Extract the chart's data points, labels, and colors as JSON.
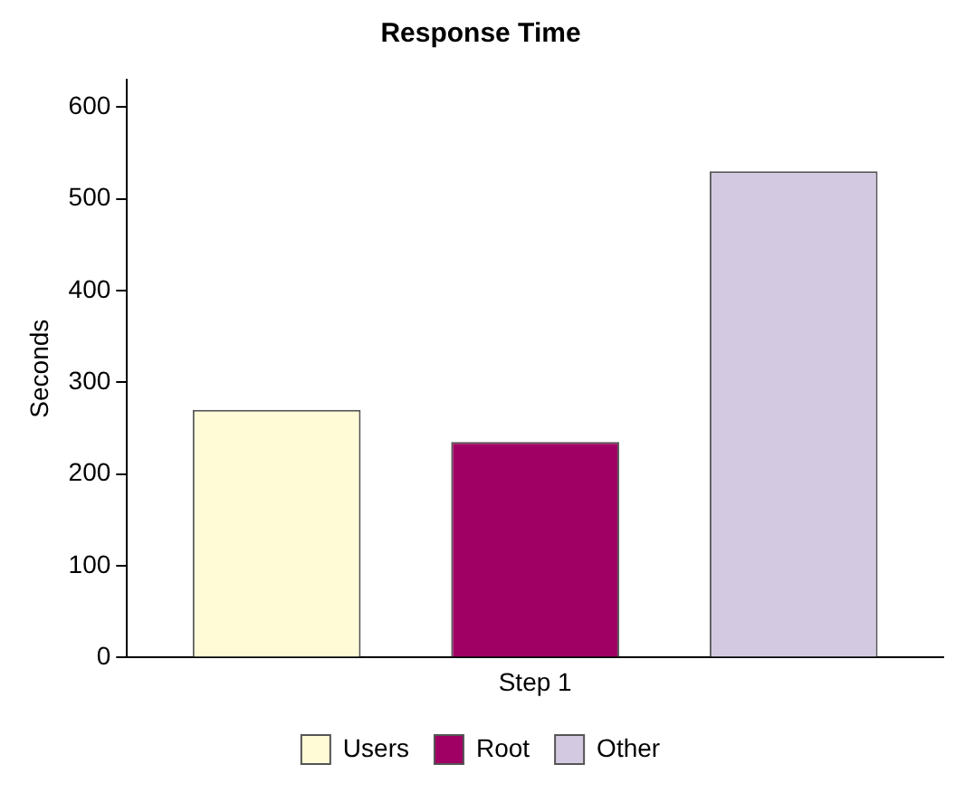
{
  "chart_data": {
    "type": "bar",
    "title": "Response Time",
    "ylabel": "Seconds",
    "categories": [
      "Step 1"
    ],
    "series": [
      {
        "name": "Users",
        "color": "#fffbd6",
        "values": [
          270
        ]
      },
      {
        "name": "Root",
        "color": "#a00064",
        "values": [
          235
        ]
      },
      {
        "name": "Other",
        "color": "#d3c9e0",
        "values": [
          530
        ]
      }
    ],
    "ylim": [
      0,
      630
    ],
    "yticks": [
      0,
      100,
      200,
      300,
      400,
      500,
      600
    ],
    "grid": false,
    "legend": "bottom"
  }
}
